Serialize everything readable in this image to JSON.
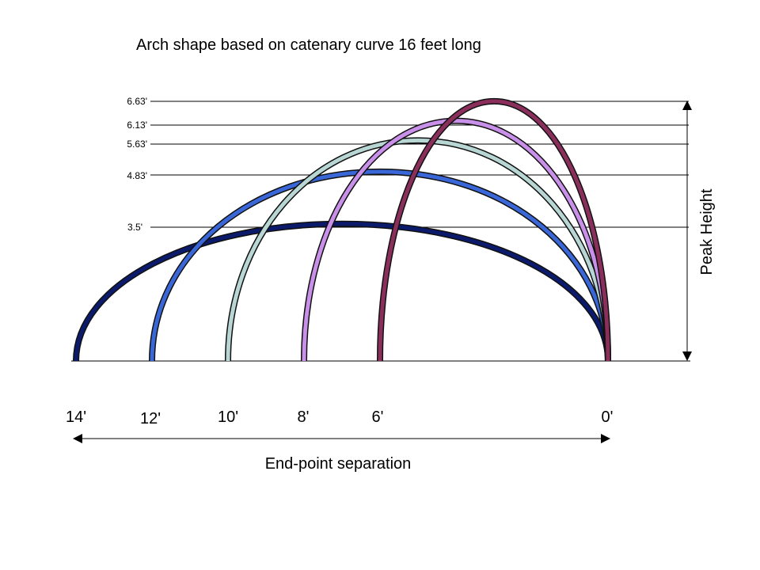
{
  "title": "Arch shape based on catenary curve 16 feet long",
  "colors": {
    "arch_14": "#0b1a6b",
    "arch_12": "#3a67d8",
    "arch_10": "#b8d6d4",
    "arch_8": "#c990ea",
    "arch_6": "#8a2f5c"
  },
  "chart_data": {
    "type": "line",
    "title": "Arch shape based on catenary curve 16 feet long",
    "xlabel": "End-point separation",
    "ylabel": "Peak Height",
    "height_ticks": [
      "6.63'",
      "6.13'",
      "5.63'",
      "4.83'",
      "3.5'"
    ],
    "separation_ticks": [
      "14'",
      "12'",
      "10'",
      "8'",
      "6'",
      "0'"
    ],
    "series": [
      {
        "separation": 14,
        "peak_height": 3.5,
        "peak_label": "3.5'",
        "end_label": "14'",
        "color": "#0b1a6b"
      },
      {
        "separation": 12,
        "peak_height": 4.83,
        "peak_label": "4.83'",
        "end_label": "12'",
        "color": "#3a67d8"
      },
      {
        "separation": 10,
        "peak_height": 5.63,
        "peak_label": "5.63'",
        "end_label": "10'",
        "color": "#b8d6d4"
      },
      {
        "separation": 8,
        "peak_height": 6.13,
        "peak_label": "6.13'",
        "end_label": "8'",
        "color": "#c990ea"
      },
      {
        "separation": 6,
        "peak_height": 6.63,
        "peak_label": "6.63'",
        "end_label": "6'",
        "color": "#8a2f5c"
      }
    ],
    "grid": false,
    "legend": "none"
  }
}
